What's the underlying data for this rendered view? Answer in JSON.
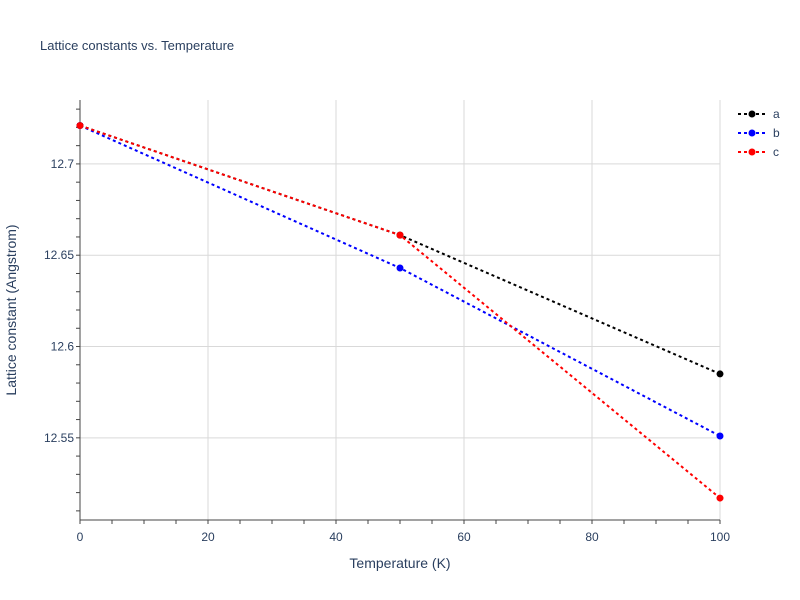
{
  "chart_data": {
    "type": "line",
    "title": "Lattice constants vs. Temperature",
    "xlabel": "Temperature (K)",
    "ylabel": "Lattice constant (Angstrom)",
    "xlim": [
      0,
      100
    ],
    "ylim": [
      12.505,
      12.735
    ],
    "x_ticks": [
      0,
      20,
      40,
      60,
      80,
      100
    ],
    "y_ticks": [
      12.55,
      12.6,
      12.65,
      12.7
    ],
    "y_tick_labels": [
      "12.55",
      "12.6",
      "12.65",
      "12.7"
    ],
    "x_tick_labels": [
      "0",
      "20",
      "40",
      "60",
      "80",
      "100"
    ],
    "grid": true,
    "legend_position": "top-right",
    "line_style": "dotted",
    "series": [
      {
        "name": "a",
        "color": "#000000",
        "x": [
          0,
          50,
          100
        ],
        "y": [
          12.721,
          12.661,
          12.585
        ]
      },
      {
        "name": "b",
        "color": "#0000ff",
        "x": [
          0,
          50,
          100
        ],
        "y": [
          12.721,
          12.643,
          12.551
        ]
      },
      {
        "name": "c",
        "color": "#ff0000",
        "x": [
          0,
          50,
          100
        ],
        "y": [
          12.721,
          12.661,
          12.517
        ]
      }
    ]
  }
}
